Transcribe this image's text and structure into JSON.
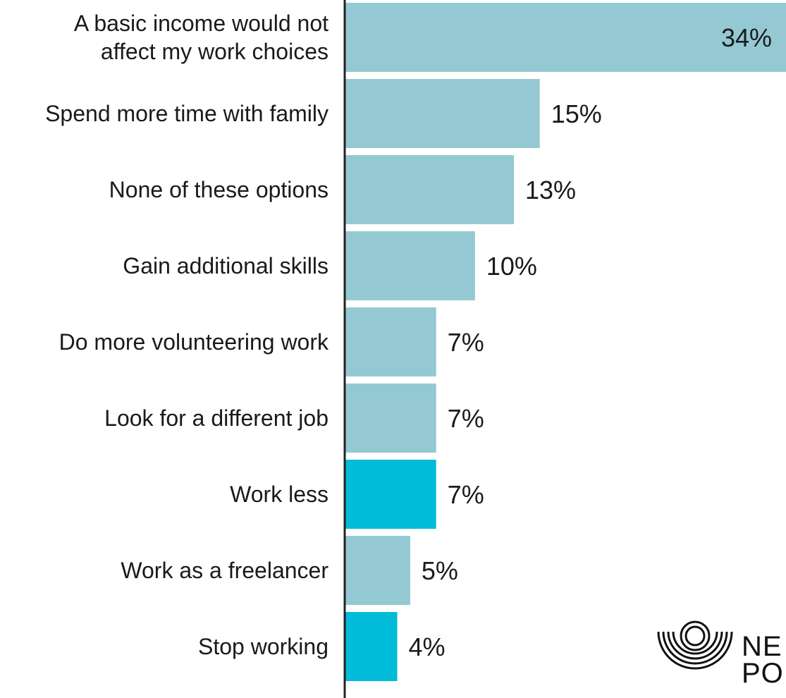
{
  "chart_data": {
    "type": "bar",
    "orientation": "horizontal",
    "categories": [
      [
        "A basic income would not",
        "affect my work choices"
      ],
      [
        "Spend more time with family"
      ],
      [
        "None of these options"
      ],
      [
        "Gain additional skills"
      ],
      [
        "Do more volunteering work"
      ],
      [
        "Look for a different job"
      ],
      [
        "Work less"
      ],
      [
        "Work as a freelancer"
      ],
      [
        "Stop working"
      ]
    ],
    "values": [
      34,
      15,
      13,
      10,
      7,
      7,
      7,
      5,
      4
    ],
    "value_labels": [
      "34%",
      "15%",
      "13%",
      "10%",
      "7%",
      "7%",
      "7%",
      "5%",
      "4%"
    ],
    "highlighted": [
      false,
      false,
      false,
      false,
      false,
      false,
      true,
      false,
      true
    ],
    "colors": {
      "default": "#94c9d3",
      "highlight": "#00bcd8",
      "axis": "#222222"
    },
    "xlim": [
      0,
      34
    ],
    "grid": false,
    "legend": "none"
  },
  "logo": {
    "icon": "concentric-circles-logo-icon",
    "line1": "NE",
    "line2": "PO"
  }
}
